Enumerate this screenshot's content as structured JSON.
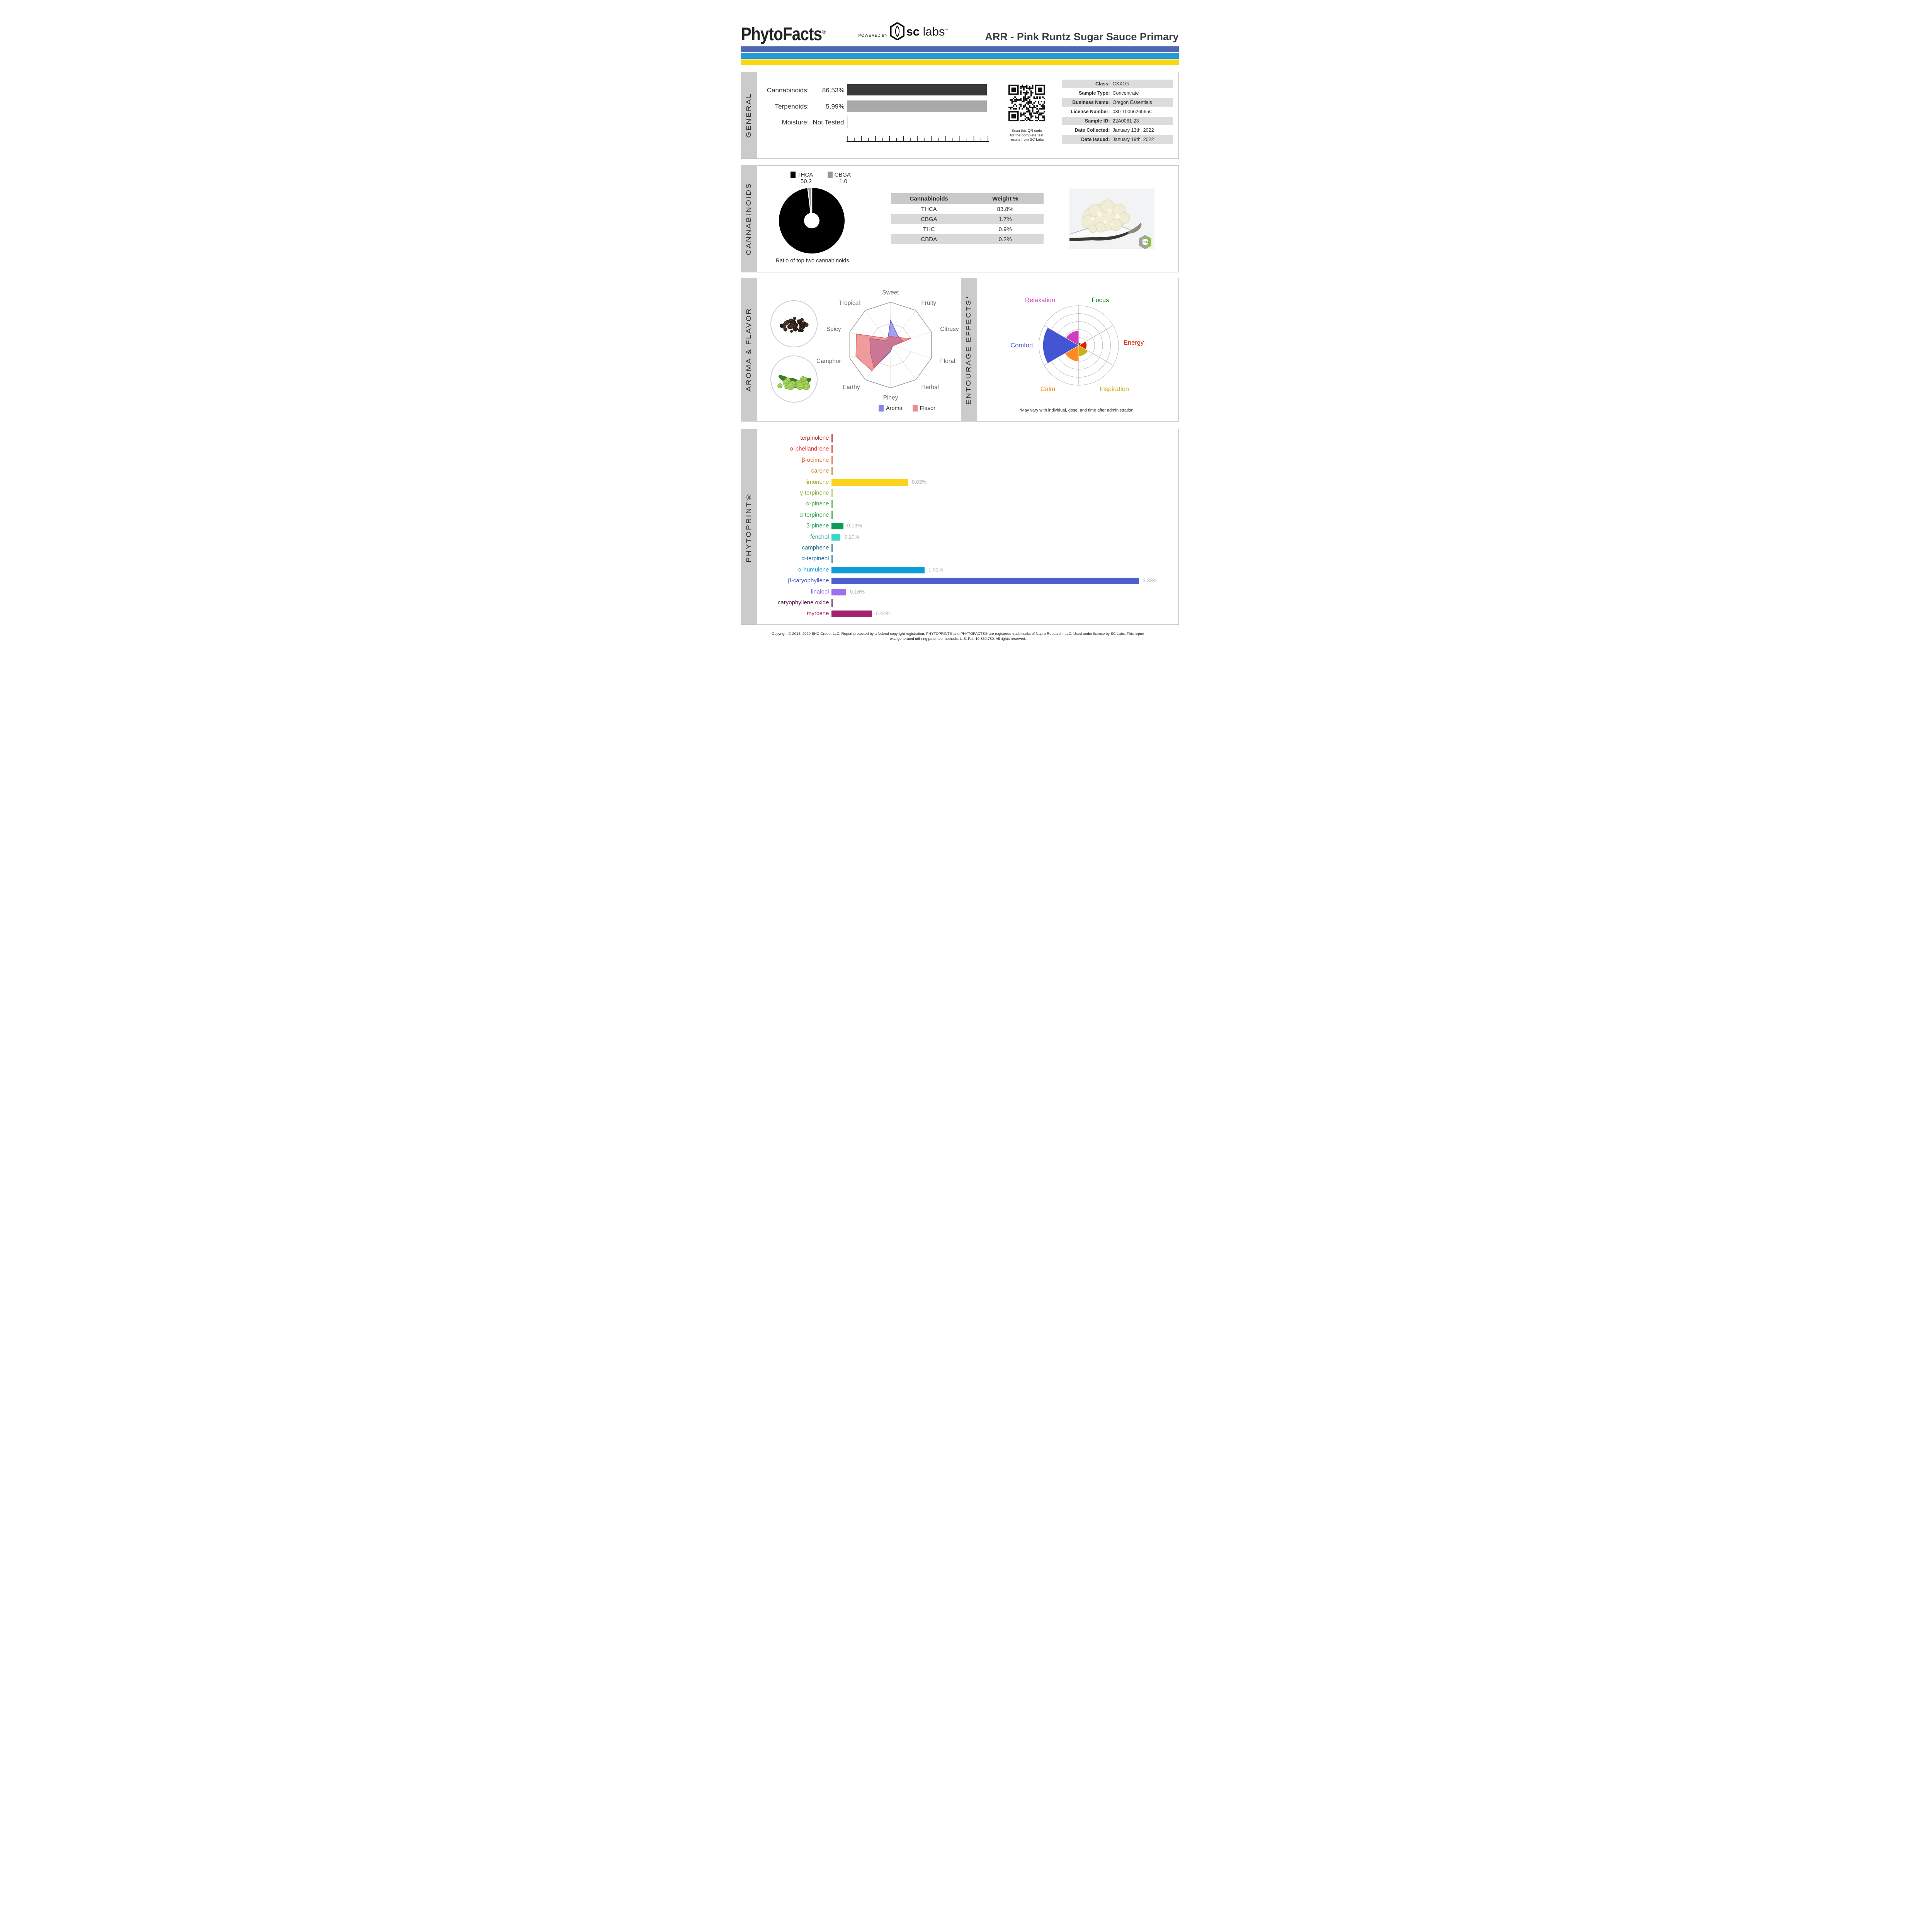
{
  "header": {
    "logo": "PhytoFacts",
    "logo_reg": "®",
    "powered_by": "POWERED BY",
    "lab_logo_sc": "sc",
    "lab_logo_labs": " labs",
    "lab_logo_tm": "™",
    "title": "ARR - Pink Runtz Sugar Sauce Primary"
  },
  "brand_bars": {
    "indigo": "#4D67B1",
    "blue": "#2399D6",
    "yellow": "#FAD713"
  },
  "sections": {
    "general": "GENERAL",
    "cannabinoids": "CANNABINOIDS",
    "aroma": "AROMA & FLAVOR",
    "entourage": "ENTOURAGE EFFECTS*",
    "phytoprint": "PHYTOPRINT®"
  },
  "general": {
    "rows": [
      {
        "label": "Cannabinoids:",
        "value": "86.53%",
        "bar_color": "#3A3A3A"
      },
      {
        "label": "Terpenoids:",
        "value": "5.99%",
        "bar_color": "#A9A9A9"
      },
      {
        "label": "Moisture:",
        "value": "Not Tested",
        "bar_color": null
      }
    ],
    "qr_caption": [
      "Scan this QR code",
      "for the complete test",
      "results from SC Labs"
    ],
    "info": [
      [
        "Class:",
        "CXX1G"
      ],
      [
        "Sample Type:",
        "Concentrate"
      ],
      [
        "Business Name:",
        "Oregon Essentials"
      ],
      [
        "License Number:",
        "030-1006626565C"
      ],
      [
        "Sample ID:",
        "22A0061-23"
      ],
      [
        "Date Collected:",
        "January 13th, 2022"
      ],
      [
        "Date Issued:",
        "January 19th, 2022"
      ]
    ]
  },
  "cannabinoids": {
    "legend": [
      {
        "name": "THCA",
        "value": "50.2",
        "color": "#000000"
      },
      {
        "name": "CBGA",
        "value": "1.0",
        "color": "#999999"
      }
    ],
    "donut": {
      "values": [
        50.2,
        1.0
      ],
      "colors": [
        "#000000",
        "#999999"
      ]
    },
    "caption": "Ratio of top two cannabinoids",
    "table": {
      "headers": [
        "Cannabinoids",
        "Weight %"
      ],
      "rows": [
        [
          "THCA",
          "83.8%"
        ],
        [
          "CBGA",
          "1.7%"
        ],
        [
          "THC",
          "0.9%"
        ],
        [
          "CBDA",
          "0.2%"
        ]
      ]
    },
    "photo_watermark": "sclabs"
  },
  "aroma_flavor": {
    "axes": [
      "Sweet",
      "Fruity",
      "Citrusy",
      "Floral",
      "Herbal",
      "Piney",
      "Earthy",
      "Camphor",
      "Spicy",
      "Tropical"
    ],
    "series": [
      {
        "name": "Aroma",
        "swatch": "#8585E8",
        "fill": "rgba(100,100,225,0.60)",
        "stroke": "#5C5CD6",
        "values": [
          0.58,
          0.28,
          0.3,
          0.06,
          0.06,
          0.15,
          0.66,
          0.5,
          0.51,
          0.12
        ]
      },
      {
        "name": "Flavor",
        "swatch": "#EC8C90",
        "fill": "rgba(230,90,92,0.60)",
        "stroke": "#DC5A5E",
        "values": [
          0.21,
          0.22,
          0.5,
          0.06,
          0.05,
          0.11,
          0.74,
          0.85,
          0.84,
          0.2
        ]
      }
    ]
  },
  "entourage": {
    "sectors": [
      {
        "label": "Focus",
        "color": "#0B7E0B",
        "value": 0.07
      },
      {
        "label": "Energy",
        "color": "#DD2301",
        "value": 0.2
      },
      {
        "label": "Inspiration",
        "color": "#C9B117",
        "value": 0.27
      },
      {
        "label": "Calm",
        "color": "#FD8A25",
        "value": 0.4
      },
      {
        "label": "Comfort",
        "color": "#4355D2",
        "value": 0.9
      },
      {
        "label": "Relaxation",
        "color": "#CE3FBE",
        "value": 0.37
      }
    ],
    "footnote": "*May vary with individual, dose, and time after administration."
  },
  "phytoprint": {
    "unit": "%",
    "max_value": 3.33,
    "terpenes": [
      {
        "name": "terpinolene",
        "color": "#A31D20",
        "bar": "#A31D20",
        "value": 0,
        "display": ""
      },
      {
        "name": "α-phellandrene",
        "color": "#E12726",
        "bar": "#E12726",
        "value": 0,
        "display": ""
      },
      {
        "name": "β-ocimene",
        "color": "#E1571F",
        "bar": "#E1571F",
        "value": 0,
        "display": ""
      },
      {
        "name": "carene",
        "color": "#BF7A1A",
        "bar": "#BF7A1A",
        "value": 0,
        "display": ""
      },
      {
        "name": "limonene",
        "color": "#A6A01B",
        "bar": "#FDD41C",
        "value": 0.83,
        "display": "0.83%"
      },
      {
        "name": "γ-terpinene",
        "color": "#83A629",
        "bar": "#9CCB61",
        "value": 0,
        "display": ""
      },
      {
        "name": "α-pinene",
        "color": "#46A046",
        "bar": "#46A046",
        "value": 0,
        "display": ""
      },
      {
        "name": "α-terpinene",
        "color": "#1C9E38",
        "bar": "#1C9E38",
        "value": 0,
        "display": ""
      },
      {
        "name": "β-pinene",
        "color": "#0B9C55",
        "bar": "#0B9C55",
        "value": 0.13,
        "display": "0.13%"
      },
      {
        "name": "fenchol",
        "color": "#1A8A80",
        "bar": "#39D8C8",
        "value": 0.1,
        "display": "0.10%"
      },
      {
        "name": "camphene",
        "color": "#176F7F",
        "bar": "#176F7F",
        "value": 0,
        "display": ""
      },
      {
        "name": "α-terpineol",
        "color": "#1C6E9E",
        "bar": "#1C6E9E",
        "value": 0,
        "display": ""
      },
      {
        "name": "α-humulene",
        "color": "#0E9CD8",
        "bar": "#0E9CD8",
        "value": 1.01,
        "display": "1.01%"
      },
      {
        "name": "β-caryophyllene",
        "color": "#3D50C4",
        "bar": "#4D5FD0",
        "value": 3.33,
        "display": "3.33%"
      },
      {
        "name": "linalool",
        "color": "#8A5CE6",
        "bar": "#9B6FF0",
        "value": 0.16,
        "display": "0.16%"
      },
      {
        "name": "caryophyllene oxide",
        "color": "#511548",
        "bar": "#511548",
        "value": 0,
        "display": ""
      },
      {
        "name": "myrcene",
        "color": "#A6216F",
        "bar": "#A6216F",
        "value": 0.44,
        "display": "0.44%"
      }
    ]
  },
  "footer": {
    "line1": "Copyright © 2013, 2020 BHC Group, LLC. Report protected by a federal copyright registration. PHYTOPRINT® and PHYTOFACTS® are registered trademarks of Napro Research, LLC. Used under license by SC Labs. This report",
    "line2": "was generated utilizing patented methods. U.S. Pat. 10,830,780. All rights reserved."
  },
  "chart_data": [
    {
      "type": "bar",
      "title": "General totals",
      "categories": [
        "Cannabinoids",
        "Terpenoids"
      ],
      "values": [
        86.53,
        5.99
      ],
      "unit": "%"
    },
    {
      "type": "pie",
      "title": "Ratio of top two cannabinoids",
      "categories": [
        "THCA",
        "CBGA"
      ],
      "values": [
        50.2,
        1.0
      ]
    },
    {
      "type": "table",
      "title": "Cannabinoids Weight %",
      "columns": [
        "Cannabinoids",
        "Weight %"
      ],
      "rows": [
        [
          "THCA",
          "83.8%"
        ],
        [
          "CBGA",
          "1.7%"
        ],
        [
          "THC",
          "0.9%"
        ],
        [
          "CBDA",
          "0.2%"
        ]
      ]
    },
    {
      "type": "radar",
      "title": "Aroma & Flavor",
      "categories": [
        "Sweet",
        "Fruity",
        "Citrusy",
        "Floral",
        "Herbal",
        "Piney",
        "Earthy",
        "Camphor",
        "Spicy",
        "Tropical"
      ],
      "series": [
        {
          "name": "Aroma",
          "values": [
            0.58,
            0.28,
            0.3,
            0.06,
            0.06,
            0.15,
            0.66,
            0.5,
            0.51,
            0.12
          ]
        },
        {
          "name": "Flavor",
          "values": [
            0.21,
            0.22,
            0.5,
            0.06,
            0.05,
            0.11,
            0.74,
            0.85,
            0.84,
            0.2
          ]
        }
      ],
      "ylim": [
        0,
        1
      ],
      "grid": true
    },
    {
      "type": "rose",
      "title": "Entourage Effects",
      "categories": [
        "Focus",
        "Energy",
        "Inspiration",
        "Calm",
        "Comfort",
        "Relaxation"
      ],
      "values": [
        0.07,
        0.2,
        0.27,
        0.4,
        0.9,
        0.37
      ],
      "ylim": [
        0,
        1
      ],
      "rings": 5
    },
    {
      "type": "bar",
      "title": "PHYTOPRINT terpenoid profile",
      "unit": "%",
      "categories": [
        "terpinolene",
        "α-phellandrene",
        "β-ocimene",
        "carene",
        "limonene",
        "γ-terpinene",
        "α-pinene",
        "α-terpinene",
        "β-pinene",
        "fenchol",
        "camphene",
        "α-terpineol",
        "α-humulene",
        "β-caryophyllene",
        "linalool",
        "caryophyllene oxide",
        "myrcene"
      ],
      "values": [
        0,
        0,
        0,
        0,
        0.83,
        0,
        0,
        0,
        0.13,
        0.1,
        0,
        0,
        1.01,
        3.33,
        0.16,
        0,
        0.44
      ]
    }
  ]
}
